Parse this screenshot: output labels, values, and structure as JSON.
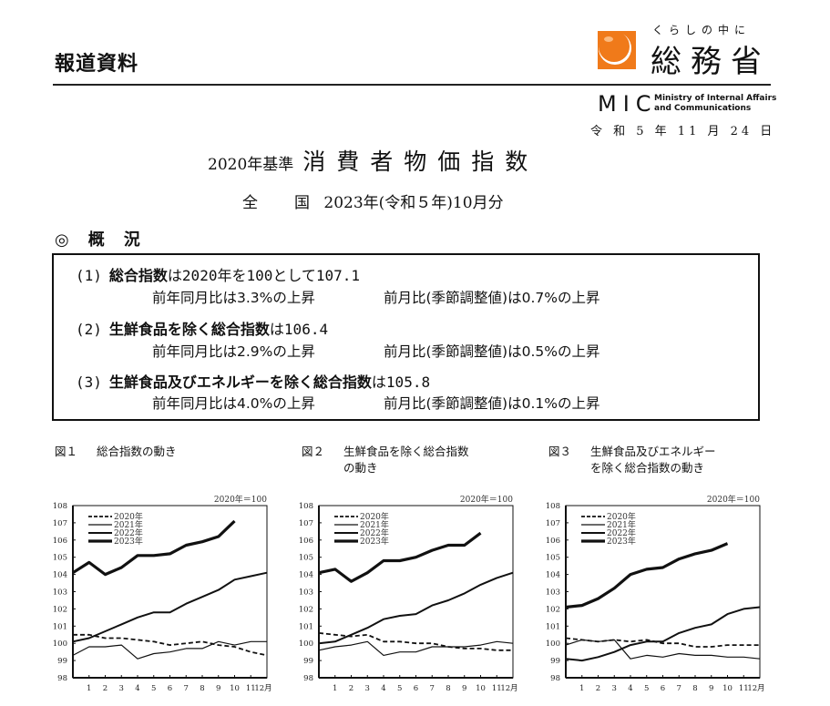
{
  "header": {
    "press_label": "報道資料",
    "logo_tagline": "くらしの中に",
    "logo_name": "総務省",
    "logo_abbr": "MIC",
    "logo_en_line1": "Ministry of Internal Affairs",
    "logo_en_line2": "and Communications",
    "logo_color": "#f07a1a",
    "date": "令 和 5 年 11 月 24 日"
  },
  "title": {
    "base": "2020年基準",
    "main": "消費者物価指数",
    "scope": "全",
    "scope2": "国",
    "period": "2023年(令和５年)10月分"
  },
  "overview": {
    "mark": "◎",
    "heading1": "概",
    "heading2": "況",
    "items": [
      {
        "num": "(1)",
        "bold": "総合指数",
        "rest": "は2020年を100として107.1",
        "yoy": "前年同月比は3.3%の上昇",
        "mom": "前月比(季節調整値)は0.7%の上昇"
      },
      {
        "num": "(2)",
        "bold": "生鮮食品を除く総合指数",
        "rest": "は106.4",
        "yoy": "前年同月比は2.9%の上昇",
        "mom": "前月比(季節調整値)は0.5%の上昇"
      },
      {
        "num": "(3)",
        "bold": "生鮮食品及びエネルギーを除く総合指数",
        "rest": "は105.8",
        "yoy": "前年同月比は4.0%の上昇",
        "mom": "前月比(季節調整値)は0.1%の上昇"
      }
    ]
  },
  "figures": [
    {
      "label": "図１",
      "caption1": "総合指数の動き",
      "caption2": ""
    },
    {
      "label": "図２",
      "caption1": "生鮮食品を除く総合指数",
      "caption2": "の動き"
    },
    {
      "label": "図３",
      "caption1": "生鮮食品及びエネルギー",
      "caption2": "を除く総合指数の動き"
    }
  ],
  "chart_data": [
    {
      "type": "line",
      "title": "総合指数の動き",
      "note": "2020年＝100",
      "xlabel": "月",
      "ylabel": "",
      "ylim": [
        98,
        108
      ],
      "yticks": [
        98,
        99,
        100,
        101,
        102,
        103,
        104,
        105,
        106,
        107,
        108
      ],
      "x": [
        0,
        1,
        2,
        3,
        4,
        5,
        6,
        7,
        8,
        9,
        10,
        11,
        12
      ],
      "xtick_labels": [
        "1",
        "2",
        "3",
        "4",
        "5",
        "6",
        "7",
        "8",
        "9",
        "10",
        "11",
        "12月"
      ],
      "legend": [
        "2020年",
        "2021年",
        "2022年",
        "2023年"
      ],
      "series": [
        {
          "name": "2020年",
          "style": "dashed",
          "values": [
            100.5,
            100.5,
            100.3,
            100.3,
            100.2,
            100.1,
            99.9,
            100.0,
            100.1,
            99.9,
            99.8,
            99.5,
            99.3
          ]
        },
        {
          "name": "2021年",
          "style": "thin",
          "values": [
            99.3,
            99.8,
            99.8,
            99.9,
            99.1,
            99.4,
            99.5,
            99.7,
            99.7,
            100.1,
            99.9,
            100.1,
            100.1
          ]
        },
        {
          "name": "2022年",
          "style": "medium",
          "values": [
            100.1,
            100.3,
            100.7,
            101.1,
            101.5,
            101.8,
            101.8,
            102.3,
            102.7,
            103.1,
            103.7,
            103.9,
            104.1
          ]
        },
        {
          "name": "2023年",
          "style": "thick",
          "values": [
            104.1,
            104.7,
            104.0,
            104.4,
            105.1,
            105.1,
            105.2,
            105.7,
            105.9,
            106.2,
            107.1
          ]
        }
      ]
    },
    {
      "type": "line",
      "title": "生鮮食品を除く総合指数の動き",
      "note": "2020年＝100",
      "xlabel": "月",
      "ylabel": "",
      "ylim": [
        98,
        108
      ],
      "yticks": [
        98,
        99,
        100,
        101,
        102,
        103,
        104,
        105,
        106,
        107,
        108
      ],
      "x": [
        0,
        1,
        2,
        3,
        4,
        5,
        6,
        7,
        8,
        9,
        10,
        11,
        12
      ],
      "xtick_labels": [
        "1",
        "2",
        "3",
        "4",
        "5",
        "6",
        "7",
        "8",
        "9",
        "10",
        "11",
        "12月"
      ],
      "legend": [
        "2020年",
        "2021年",
        "2022年",
        "2023年"
      ],
      "series": [
        {
          "name": "2020年",
          "style": "dashed",
          "values": [
            100.6,
            100.5,
            100.4,
            100.5,
            100.1,
            100.1,
            100.0,
            100.0,
            99.8,
            99.7,
            99.7,
            99.6,
            99.6
          ]
        },
        {
          "name": "2021年",
          "style": "thin",
          "values": [
            99.6,
            99.8,
            99.9,
            100.1,
            99.3,
            99.5,
            99.5,
            99.8,
            99.8,
            99.8,
            99.9,
            100.1,
            100.0
          ]
        },
        {
          "name": "2022年",
          "style": "medium",
          "values": [
            100.0,
            100.1,
            100.5,
            100.9,
            101.4,
            101.6,
            101.7,
            102.2,
            102.5,
            102.9,
            103.4,
            103.8,
            104.1
          ]
        },
        {
          "name": "2023年",
          "style": "thick",
          "values": [
            104.1,
            104.3,
            103.6,
            104.1,
            104.8,
            104.8,
            105.0,
            105.4,
            105.7,
            105.7,
            106.4
          ]
        }
      ]
    },
    {
      "type": "line",
      "title": "生鮮食品及びエネルギーを除く総合指数の動き",
      "note": "2020年＝100",
      "xlabel": "月",
      "ylabel": "",
      "ylim": [
        98,
        108
      ],
      "yticks": [
        98,
        99,
        100,
        101,
        102,
        103,
        104,
        105,
        106,
        107,
        108
      ],
      "x": [
        0,
        1,
        2,
        3,
        4,
        5,
        6,
        7,
        8,
        9,
        10,
        11,
        12
      ],
      "xtick_labels": [
        "1",
        "2",
        "3",
        "4",
        "5",
        "6",
        "7",
        "8",
        "9",
        "10",
        "11",
        "12月"
      ],
      "legend": [
        "2020年",
        "2021年",
        "2022年",
        "2023年"
      ],
      "series": [
        {
          "name": "2020年",
          "style": "dashed",
          "values": [
            100.3,
            100.2,
            100.1,
            100.2,
            100.1,
            100.2,
            100.0,
            100.0,
            99.8,
            99.8,
            99.9,
            99.9,
            99.9
          ]
        },
        {
          "name": "2021年",
          "style": "thin",
          "values": [
            99.9,
            100.2,
            100.1,
            100.2,
            99.1,
            99.3,
            99.2,
            99.4,
            99.3,
            99.3,
            99.2,
            99.2,
            99.1
          ]
        },
        {
          "name": "2022年",
          "style": "medium",
          "values": [
            99.1,
            99.0,
            99.2,
            99.5,
            99.9,
            100.1,
            100.1,
            100.6,
            100.9,
            101.1,
            101.7,
            102.0,
            102.1
          ]
        },
        {
          "name": "2023年",
          "style": "thick",
          "values": [
            102.1,
            102.2,
            102.6,
            103.2,
            104.0,
            104.3,
            104.4,
            104.9,
            105.2,
            105.4,
            105.8
          ]
        }
      ]
    }
  ]
}
